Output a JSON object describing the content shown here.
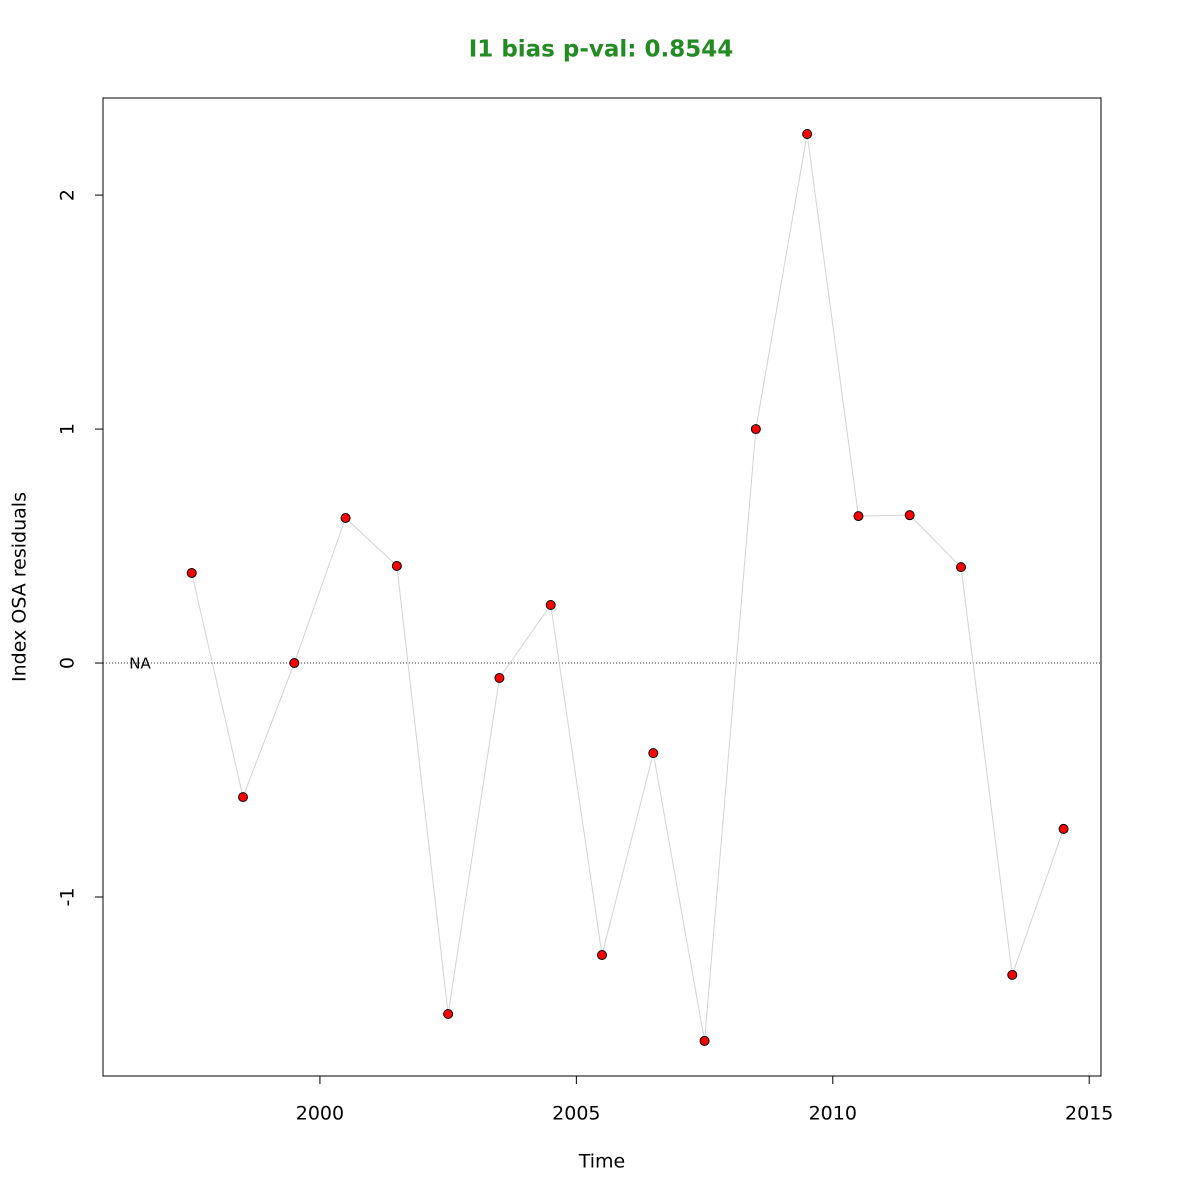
{
  "chart_data": {
    "type": "line",
    "title": "I1 bias p-val: 0.8544",
    "x_label": "Time",
    "y_label": "Index OSA residuals",
    "annotation": "NA",
    "x": [
      1997.5,
      1998.5,
      1999.5,
      2000.5,
      2001.5,
      2002.5,
      2003.5,
      2004.5,
      2005.5,
      2006.5,
      2007.5,
      2008.5,
      2009.5,
      2010.5,
      2011.5,
      2012.5,
      2013.5,
      2014.5
    ],
    "series": [
      {
        "name": "I1",
        "color": "#ff0000",
        "line_color": "#d3d3d3",
        "values": [
          0.385,
          -0.573,
          0,
          0.62,
          0.415,
          -1.5,
          -0.064,
          0.248,
          -1.248,
          -0.385,
          -1.615,
          1.0,
          2.261,
          0.628,
          0.632,
          0.41,
          -1.333,
          -0.709
        ]
      }
    ],
    "reference_line": 0,
    "xlim": [
      1995.77,
      2015.23
    ],
    "xticks": [
      2000,
      2005,
      2010,
      2015
    ],
    "ylim": [
      -1.765,
      2.415
    ],
    "yticks": [
      -1,
      0,
      1,
      2
    ]
  }
}
